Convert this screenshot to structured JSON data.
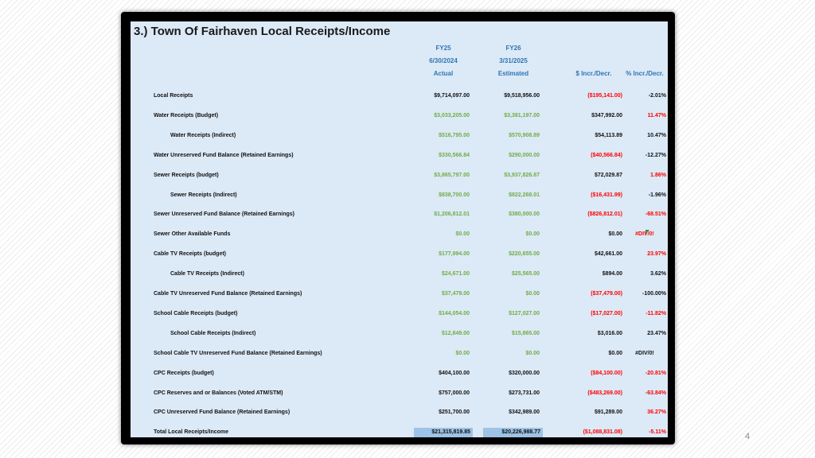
{
  "title": "3.) Town Of Fairhaven Local Receipts/Income",
  "headers": {
    "fy25": [
      "FY25",
      "6/30/2024",
      "Actual"
    ],
    "fy26": [
      "FY26",
      "3/31/2025",
      "Estimated"
    ],
    "incr": "$ Incr./Decr.",
    "pct": "% Incr./Decr."
  },
  "rows": [
    {
      "label": "Local Receipts",
      "fy25": "$9,714,097.00",
      "fy26": "$9,518,956.00",
      "incr": "($195,141.00)",
      "pct": "-2.01%"
    },
    {
      "label": "Water Receipts (Budget)",
      "fy25": "$3,033,205.00",
      "fy26": "$3,381,197.00",
      "incr": "$347,992.00",
      "pct": "11.47%"
    },
    {
      "label": "Water Receipts (Indirect)",
      "fy25": "$516,795.00",
      "fy26": "$570,908.89",
      "incr": "$54,113.89",
      "pct": "10.47%"
    },
    {
      "label": "Water Unreserved Fund Balance (Retained Earnings)",
      "fy25": "$330,566.84",
      "fy26": "$290,000.00",
      "incr": "($40,566.84)",
      "pct": "-12.27%"
    },
    {
      "label": "Sewer Receipts (budget)",
      "fy25": "$3,865,797.00",
      "fy26": "$3,937,826.87",
      "incr": "$72,029.87",
      "pct": "1.86%"
    },
    {
      "label": "Sewer Receipts (Indirect)",
      "fy25": "$838,700.00",
      "fy26": "$822,268.01",
      "incr": "($16,431.99)",
      "pct": "-1.96%"
    },
    {
      "label": "Sewer Unreserved Fund Balance (Retained Earnings)",
      "fy25": "$1,206,812.01",
      "fy26": "$380,000.00",
      "incr": "($826,812.01)",
      "pct": "-68.51%"
    },
    {
      "label": "Sewer Other Available Funds",
      "fy25": "$0.00",
      "fy26": "$0.00",
      "incr": "$0.00",
      "pct": "#DIV/0!"
    },
    {
      "label": "Cable TV Receipts (budget)",
      "fy25": "$177,994.00",
      "fy26": "$220,655.00",
      "incr": "$42,661.00",
      "pct": "23.97%"
    },
    {
      "label": "Cable TV Receipts (Indirect)",
      "fy25": "$24,671.00",
      "fy26": "$25,565.00",
      "incr": "$894.00",
      "pct": "3.62%"
    },
    {
      "label": "Cable TV Unreserved Fund Balance (Retained Earnings)",
      "fy25": "$37,479.00",
      "fy26": "$0.00",
      "incr": "($37,479.00)",
      "pct": "-100.00%"
    },
    {
      "label": "School Cable Receipts (budget)",
      "fy25": "$144,054.00",
      "fy26": "$127,027.00",
      "incr": "($17,027.00)",
      "pct": "-11.82%"
    },
    {
      "label": "School Cable Receipts (Indirect)",
      "fy25": "$12,849.00",
      "fy26": "$15,865.00",
      "incr": "$3,016.00",
      "pct": "23.47%"
    },
    {
      "label": "School Cable TV Unreserved Fund Balance (Retained Earnings)",
      "fy25": "$0.00",
      "fy26": "$0.00",
      "incr": "$0.00",
      "pct": "#DIV/0!"
    },
    {
      "label": "CPC Receipts (budget)",
      "fy25": "$404,100.00",
      "fy26": "$320,000.00",
      "incr": "($84,100.00)",
      "pct": "-20.81%"
    },
    {
      "label": "CPC Reserves and or Balances (Voted ATM/STM)",
      "fy25": "$757,000.00",
      "fy26": "$273,731.00",
      "incr": "($483,269.00)",
      "pct": "-63.84%"
    },
    {
      "label": "CPC Unreserved Fund Balance (Retained Earnings)",
      "fy25": "$251,700.00",
      "fy26": "$342,989.00",
      "incr": "$91,289.00",
      "pct": "36.27%"
    },
    {
      "label": "Total Local Receipts/Income",
      "fy25": "$21,315,819.85",
      "fy26": "$20,226,988.77",
      "incr": "($1,088,831.08)",
      "pct": "-5.11%"
    }
  ],
  "page_number": "4"
}
